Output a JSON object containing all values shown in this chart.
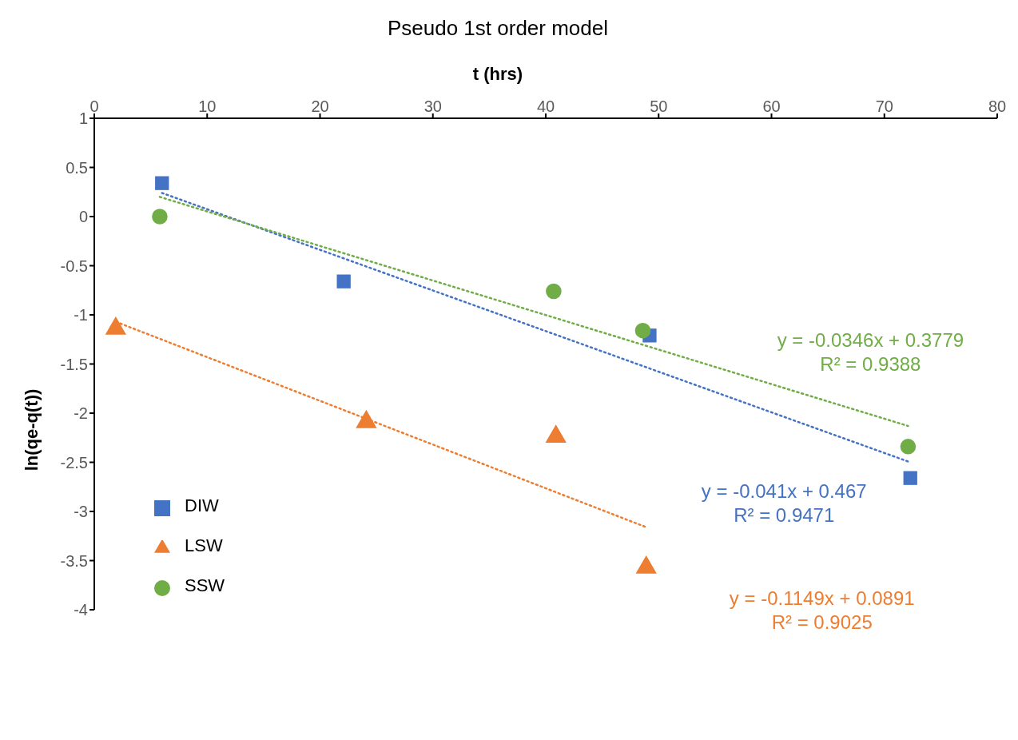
{
  "chart_data": {
    "type": "scatter",
    "title": "Pseudo 1st order model",
    "xlabel": "t (hrs)",
    "ylabel": "ln(qe-q(t))",
    "xlim": [
      0,
      80
    ],
    "xticks": [
      0,
      10,
      20,
      30,
      40,
      50,
      60,
      70,
      80
    ],
    "ylim": [
      -4,
      1
    ],
    "yticks": [
      -4,
      -3.5,
      -3,
      -2.5,
      -2,
      -1.5,
      -1,
      -0.5,
      0,
      0.5,
      1
    ],
    "grid": false,
    "legend": "left",
    "line_style": "dotted",
    "series": [
      {
        "name": "DIW",
        "color": "#4472c4",
        "marker": "square",
        "x": [
          6.0,
          22.1,
          49.2,
          72.3
        ],
        "values": [
          0.34,
          -0.66,
          -1.21,
          -2.66
        ]
      },
      {
        "name": "LSW",
        "color": "#ed7d31",
        "marker": "triangle",
        "x": [
          1.9,
          24.1,
          40.9,
          48.9
        ],
        "values": [
          -1.14,
          -2.09,
          -2.24,
          -3.57
        ]
      },
      {
        "name": "SSW",
        "color": "#70ad47",
        "marker": "circle",
        "x": [
          5.8,
          40.7,
          48.6,
          72.1
        ],
        "values": [
          0.0,
          -0.76,
          -1.16,
          -2.34
        ]
      },
      {
        "type": "line",
        "color": "#4472c4",
        "x": [
          6.0,
          72.3
        ],
        "values": [
          0.24,
          -2.5
        ]
      },
      {
        "type": "line",
        "color": "#ed7d31",
        "x": [
          1.9,
          48.9
        ],
        "values": [
          -1.07,
          -3.16
        ]
      },
      {
        "type": "line",
        "color": "#70ad47",
        "x": [
          5.8,
          72.1
        ],
        "values": [
          0.2,
          -2.13
        ]
      }
    ],
    "annotations": [
      "y = -0.041x + 0.467\nR² = 0.9471",
      "y = -0.1149x + 0.0891\nR² = 0.9025",
      "y = -0.0346x + 0.3779\nR² = 0.9388"
    ]
  }
}
